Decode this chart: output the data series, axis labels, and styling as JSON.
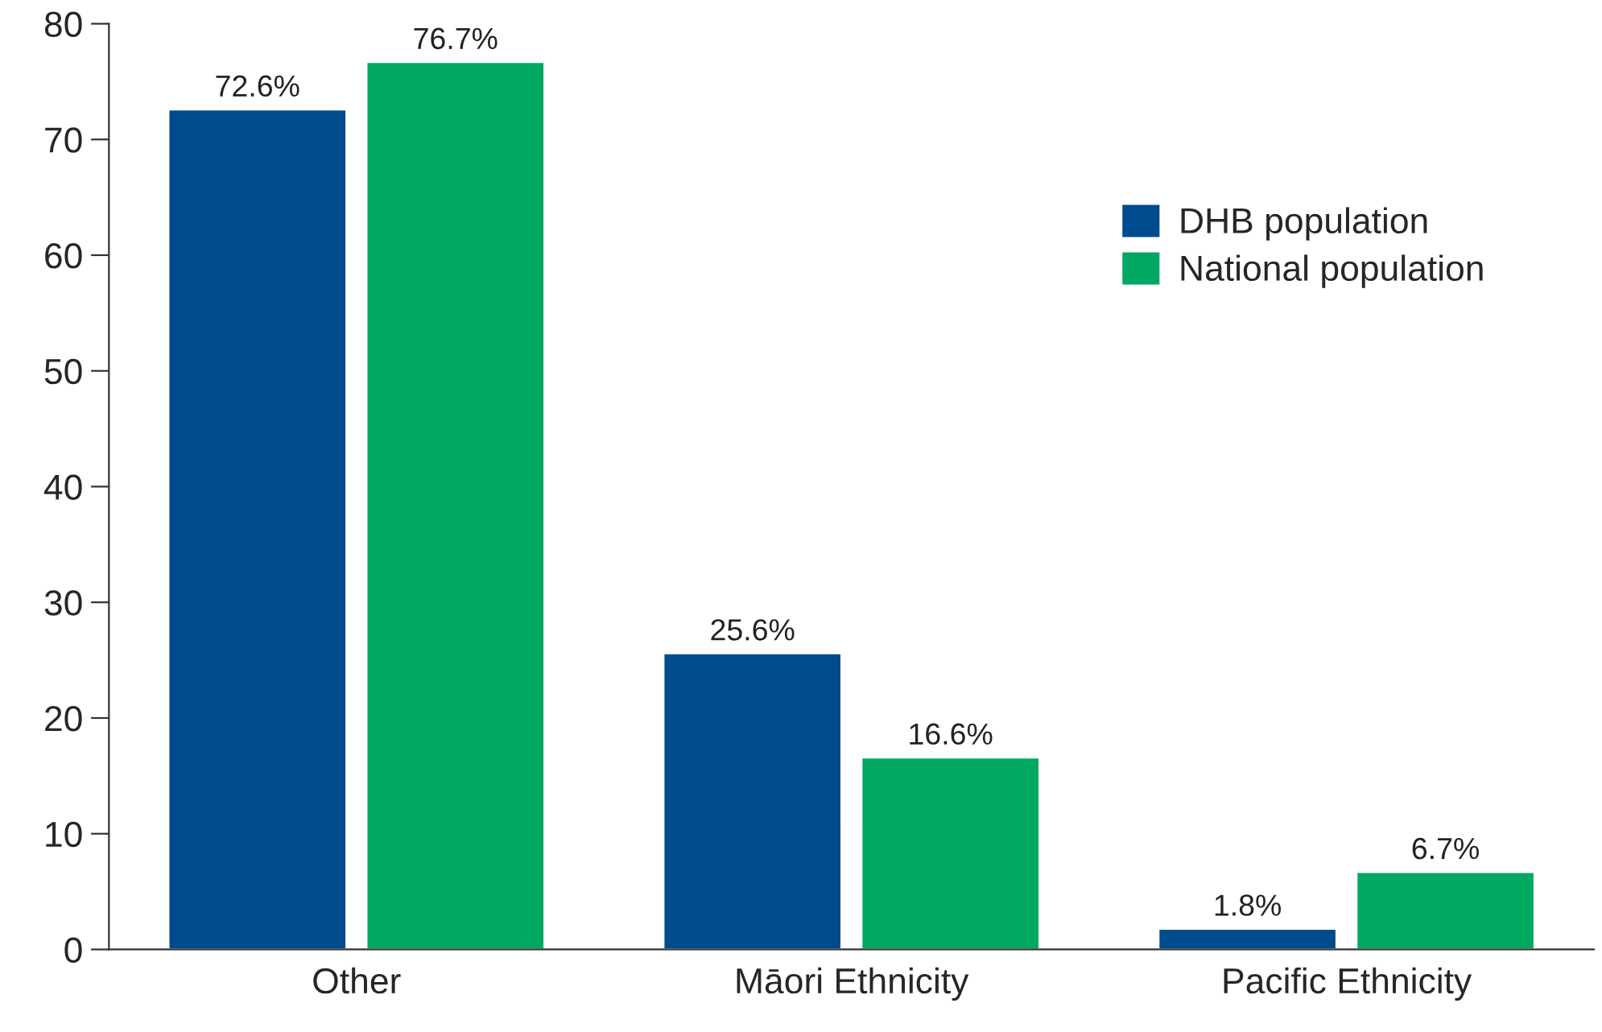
{
  "chart_data": {
    "type": "bar",
    "categories": [
      "Other",
      "Māori Ethnicity",
      "Pacific Ethnicity"
    ],
    "series": [
      {
        "name": "DHB population",
        "color": "#004b8d",
        "values": [
          72.6,
          25.6,
          1.8
        ],
        "value_labels": [
          "72.6%",
          "25.6%",
          "1.8%"
        ]
      },
      {
        "name": "National population",
        "color": "#00a862",
        "values": [
          76.7,
          16.6,
          6.7
        ],
        "value_labels": [
          "76.7%",
          "16.6%",
          "6.7%"
        ]
      }
    ],
    "ylim": [
      0,
      80
    ],
    "yticks": [
      0,
      10,
      20,
      30,
      40,
      50,
      60,
      70,
      80
    ],
    "grid": false,
    "legend": "right"
  }
}
